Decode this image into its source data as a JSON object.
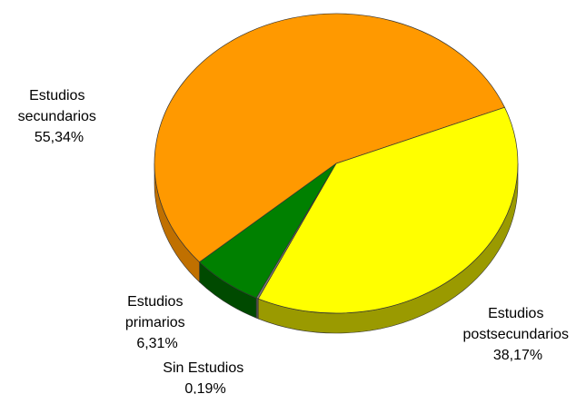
{
  "chart_data": {
    "type": "pie",
    "title": "",
    "slices": [
      {
        "label_lines": [
          "Estudios",
          "secundarios"
        ],
        "value_text": "55,34%",
        "value": 55.34,
        "color": "#FF9900",
        "side_color": "#C07000"
      },
      {
        "label_lines": [
          "Estudios",
          "postsecundarios"
        ],
        "value_text": "38,17%",
        "value": 38.17,
        "color": "#FFFF00",
        "side_color": "#9A9A00"
      },
      {
        "label_lines": [
          "Sin Estudios"
        ],
        "value_text": "0,19%",
        "value": 0.19,
        "color": "#808080",
        "side_color": "#505050"
      },
      {
        "label_lines": [
          "Estudios",
          "primarios"
        ],
        "value_text": "6,31%",
        "value": 6.31,
        "color": "#008000",
        "side_color": "#004A00"
      }
    ],
    "style": "3d-tilted"
  }
}
